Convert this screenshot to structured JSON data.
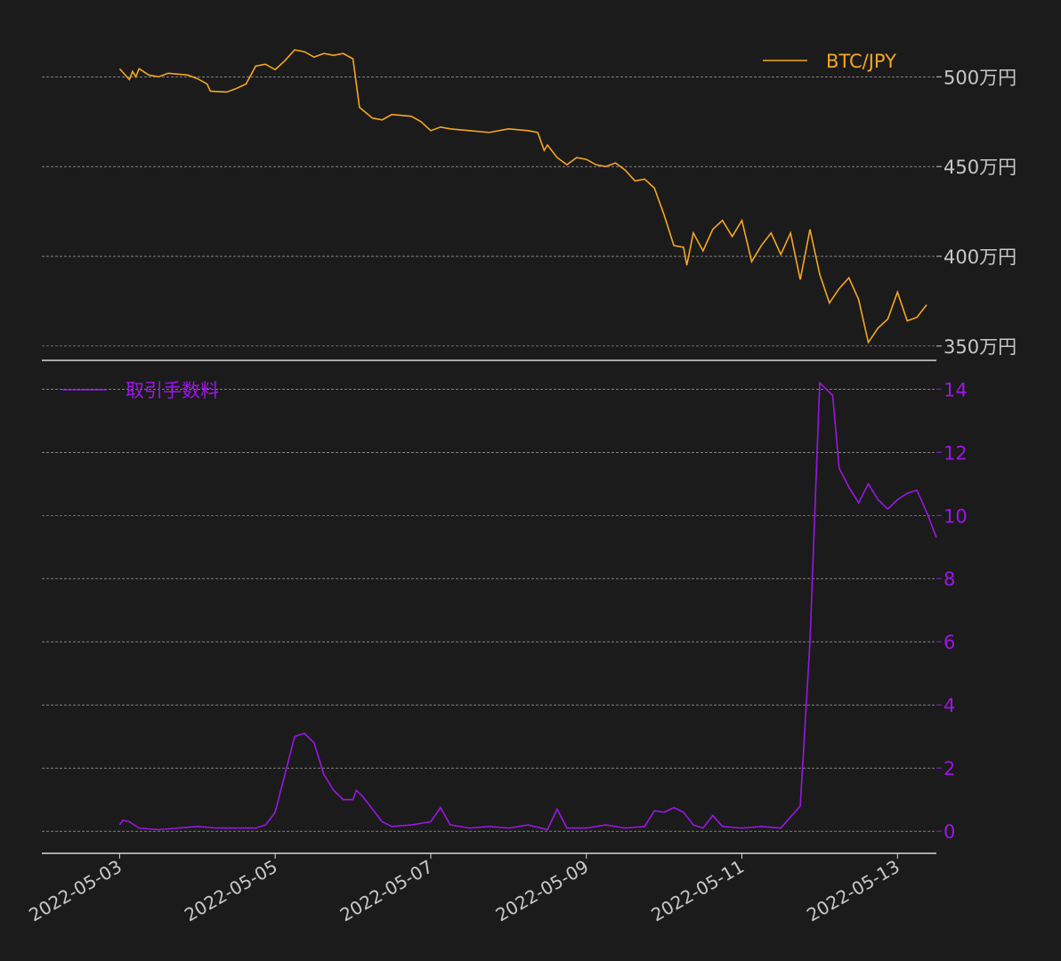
{
  "colors": {
    "background": "#1b1b1b",
    "btc": "#f5a623",
    "fee": "#9b16e6",
    "grid": "#bdbdbd",
    "axis_text": "#c8c8c8",
    "spine": "#d8d8d8"
  },
  "x_axis": {
    "range": [
      "2022-05-02",
      "2022-05-13"
    ],
    "ticks": [
      "2022-05-03",
      "2022-05-05",
      "2022-05-07",
      "2022-05-09",
      "2022-05-11",
      "2022-05-13"
    ]
  },
  "chart_data": [
    {
      "type": "line",
      "legend": {
        "label": "BTC/JPY",
        "position": "top-right"
      },
      "y_ticks": [
        {
          "value": 5000000,
          "label": "500万円"
        },
        {
          "value": 4500000,
          "label": "450万円"
        },
        {
          "value": 4000000,
          "label": "400万円"
        },
        {
          "value": 3500000,
          "label": "350万円"
        }
      ],
      "ylim": [
        3420000,
        5200000
      ],
      "grid": true,
      "series": [
        {
          "name": "BTC/JPY",
          "points": [
            [
              "2022-05-03 00:00",
              5045000
            ],
            [
              "2022-05-03 03:00",
              4985000
            ],
            [
              "2022-05-03 04:00",
              5030000
            ],
            [
              "2022-05-03 05:00",
              5000000
            ],
            [
              "2022-05-03 06:00",
              5045000
            ],
            [
              "2022-05-03 09:00",
              5010000
            ],
            [
              "2022-05-03 12:00",
              5000000
            ],
            [
              "2022-05-03 15:00",
              5020000
            ],
            [
              "2022-05-03 21:00",
              5010000
            ],
            [
              "2022-05-04 00:00",
              4990000
            ],
            [
              "2022-05-04 03:00",
              4960000
            ],
            [
              "2022-05-04 04:00",
              4920000
            ],
            [
              "2022-05-04 09:00",
              4915000
            ],
            [
              "2022-05-04 12:00",
              4935000
            ],
            [
              "2022-05-04 15:00",
              4960000
            ],
            [
              "2022-05-04 18:00",
              5060000
            ],
            [
              "2022-05-04 21:00",
              5070000
            ],
            [
              "2022-05-05 00:00",
              5040000
            ],
            [
              "2022-05-05 03:00",
              5090000
            ],
            [
              "2022-05-05 06:00",
              5150000
            ],
            [
              "2022-05-05 09:00",
              5140000
            ],
            [
              "2022-05-05 12:00",
              5110000
            ],
            [
              "2022-05-05 15:00",
              5130000
            ],
            [
              "2022-05-05 18:00",
              5120000
            ],
            [
              "2022-05-05 21:00",
              5130000
            ],
            [
              "2022-05-06 00:00",
              5100000
            ],
            [
              "2022-05-06 02:00",
              4830000
            ],
            [
              "2022-05-06 06:00",
              4770000
            ],
            [
              "2022-05-06 09:00",
              4760000
            ],
            [
              "2022-05-06 12:00",
              4790000
            ],
            [
              "2022-05-06 18:00",
              4780000
            ],
            [
              "2022-05-06 21:00",
              4750000
            ],
            [
              "2022-05-07 00:00",
              4700000
            ],
            [
              "2022-05-07 03:00",
              4720000
            ],
            [
              "2022-05-07 06:00",
              4710000
            ],
            [
              "2022-05-07 12:00",
              4700000
            ],
            [
              "2022-05-07 18:00",
              4690000
            ],
            [
              "2022-05-08 00:00",
              4710000
            ],
            [
              "2022-05-08 06:00",
              4700000
            ],
            [
              "2022-05-08 09:00",
              4690000
            ],
            [
              "2022-05-08 11:00",
              4590000
            ],
            [
              "2022-05-08 12:00",
              4620000
            ],
            [
              "2022-05-08 15:00",
              4550000
            ],
            [
              "2022-05-08 18:00",
              4510000
            ],
            [
              "2022-05-08 21:00",
              4550000
            ],
            [
              "2022-05-09 00:00",
              4540000
            ],
            [
              "2022-05-09 03:00",
              4510000
            ],
            [
              "2022-05-09 06:00",
              4500000
            ],
            [
              "2022-05-09 09:00",
              4520000
            ],
            [
              "2022-05-09 12:00",
              4480000
            ],
            [
              "2022-05-09 15:00",
              4420000
            ],
            [
              "2022-05-09 18:00",
              4430000
            ],
            [
              "2022-05-09 21:00",
              4380000
            ],
            [
              "2022-05-10 00:00",
              4230000
            ],
            [
              "2022-05-10 03:00",
              4060000
            ],
            [
              "2022-05-10 06:00",
              4050000
            ],
            [
              "2022-05-10 07:00",
              3950000
            ],
            [
              "2022-05-10 09:00",
              4130000
            ],
            [
              "2022-05-10 12:00",
              4030000
            ],
            [
              "2022-05-10 15:00",
              4150000
            ],
            [
              "2022-05-10 18:00",
              4200000
            ],
            [
              "2022-05-10 21:00",
              4110000
            ],
            [
              "2022-05-11 00:00",
              4200000
            ],
            [
              "2022-05-11 03:00",
              3970000
            ],
            [
              "2022-05-11 06:00",
              4060000
            ],
            [
              "2022-05-11 09:00",
              4130000
            ],
            [
              "2022-05-11 12:00",
              4010000
            ],
            [
              "2022-05-11 15:00",
              4130000
            ],
            [
              "2022-05-11 18:00",
              3870000
            ],
            [
              "2022-05-11 21:00",
              4150000
            ],
            [
              "2022-05-12 00:00",
              3900000
            ],
            [
              "2022-05-12 03:00",
              3740000
            ],
            [
              "2022-05-12 06:00",
              3820000
            ],
            [
              "2022-05-12 09:00",
              3880000
            ],
            [
              "2022-05-12 12:00",
              3760000
            ],
            [
              "2022-05-12 15:00",
              3520000
            ],
            [
              "2022-05-12 18:00",
              3600000
            ],
            [
              "2022-05-12 21:00",
              3650000
            ],
            [
              "2022-05-13 00:00",
              3800000
            ],
            [
              "2022-05-13 03:00",
              3640000
            ],
            [
              "2022-05-13 06:00",
              3660000
            ],
            [
              "2022-05-13 09:00",
              3730000
            ]
          ]
        }
      ]
    },
    {
      "type": "line",
      "legend": {
        "label": "取引手数料",
        "position": "top-left"
      },
      "y_ticks": [
        {
          "value": 0,
          "label": "0"
        },
        {
          "value": 2,
          "label": "2"
        },
        {
          "value": 4,
          "label": "4"
        },
        {
          "value": 6,
          "label": "6"
        },
        {
          "value": 8,
          "label": "8"
        },
        {
          "value": 10,
          "label": "10"
        },
        {
          "value": 12,
          "label": "12"
        },
        {
          "value": 14,
          "label": "14"
        }
      ],
      "ylim": [
        -0.7,
        14.6
      ],
      "grid": true,
      "series": [
        {
          "name": "取引手数料",
          "points": [
            [
              "2022-05-03 00:00",
              0.2
            ],
            [
              "2022-05-03 01:00",
              0.35
            ],
            [
              "2022-05-03 03:00",
              0.3
            ],
            [
              "2022-05-03 06:00",
              0.1
            ],
            [
              "2022-05-03 12:00",
              0.05
            ],
            [
              "2022-05-03 18:00",
              0.1
            ],
            [
              "2022-05-04 00:00",
              0.15
            ],
            [
              "2022-05-04 06:00",
              0.1
            ],
            [
              "2022-05-04 12:00",
              0.1
            ],
            [
              "2022-05-04 18:00",
              0.1
            ],
            [
              "2022-05-04 21:00",
              0.2
            ],
            [
              "2022-05-05 00:00",
              0.6
            ],
            [
              "2022-05-05 04:00",
              2.2
            ],
            [
              "2022-05-05 06:00",
              3.0
            ],
            [
              "2022-05-05 09:00",
              3.1
            ],
            [
              "2022-05-05 12:00",
              2.8
            ],
            [
              "2022-05-05 15:00",
              1.8
            ],
            [
              "2022-05-05 18:00",
              1.3
            ],
            [
              "2022-05-05 21:00",
              1.0
            ],
            [
              "2022-05-06 00:00",
              1.0
            ],
            [
              "2022-05-06 01:00",
              1.3
            ],
            [
              "2022-05-06 03:00",
              1.1
            ],
            [
              "2022-05-06 06:00",
              0.7
            ],
            [
              "2022-05-06 09:00",
              0.3
            ],
            [
              "2022-05-06 12:00",
              0.15
            ],
            [
              "2022-05-06 18:00",
              0.2
            ],
            [
              "2022-05-07 00:00",
              0.3
            ],
            [
              "2022-05-07 03:00",
              0.75
            ],
            [
              "2022-05-07 06:00",
              0.2
            ],
            [
              "2022-05-07 12:00",
              0.1
            ],
            [
              "2022-05-07 18:00",
              0.15
            ],
            [
              "2022-05-08 00:00",
              0.1
            ],
            [
              "2022-05-08 06:00",
              0.2
            ],
            [
              "2022-05-08 12:00",
              0.05
            ],
            [
              "2022-05-08 15:00",
              0.7
            ],
            [
              "2022-05-08 18:00",
              0.1
            ],
            [
              "2022-05-09 00:00",
              0.1
            ],
            [
              "2022-05-09 06:00",
              0.2
            ],
            [
              "2022-05-09 12:00",
              0.1
            ],
            [
              "2022-05-09 18:00",
              0.15
            ],
            [
              "2022-05-09 21:00",
              0.65
            ],
            [
              "2022-05-10 00:00",
              0.6
            ],
            [
              "2022-05-10 03:00",
              0.75
            ],
            [
              "2022-05-10 06:00",
              0.6
            ],
            [
              "2022-05-10 09:00",
              0.2
            ],
            [
              "2022-05-10 12:00",
              0.1
            ],
            [
              "2022-05-10 15:00",
              0.5
            ],
            [
              "2022-05-10 18:00",
              0.15
            ],
            [
              "2022-05-11 00:00",
              0.1
            ],
            [
              "2022-05-11 06:00",
              0.15
            ],
            [
              "2022-05-11 12:00",
              0.1
            ],
            [
              "2022-05-11 18:00",
              0.8
            ],
            [
              "2022-05-11 21:00",
              6.0
            ],
            [
              "2022-05-12 00:00",
              14.2
            ],
            [
              "2022-05-12 02:00",
              14.0
            ],
            [
              "2022-05-12 04:00",
              13.8
            ],
            [
              "2022-05-12 06:00",
              11.5
            ],
            [
              "2022-05-12 09:00",
              10.9
            ],
            [
              "2022-05-12 12:00",
              10.4
            ],
            [
              "2022-05-12 15:00",
              11.0
            ],
            [
              "2022-05-12 18:00",
              10.5
            ],
            [
              "2022-05-12 21:00",
              10.2
            ],
            [
              "2022-05-13 00:00",
              10.5
            ],
            [
              "2022-05-13 03:00",
              10.7
            ],
            [
              "2022-05-13 06:00",
              10.8
            ],
            [
              "2022-05-13 09:00",
              10.1
            ],
            [
              "2022-05-13 12:00",
              9.3
            ]
          ]
        }
      ]
    }
  ]
}
